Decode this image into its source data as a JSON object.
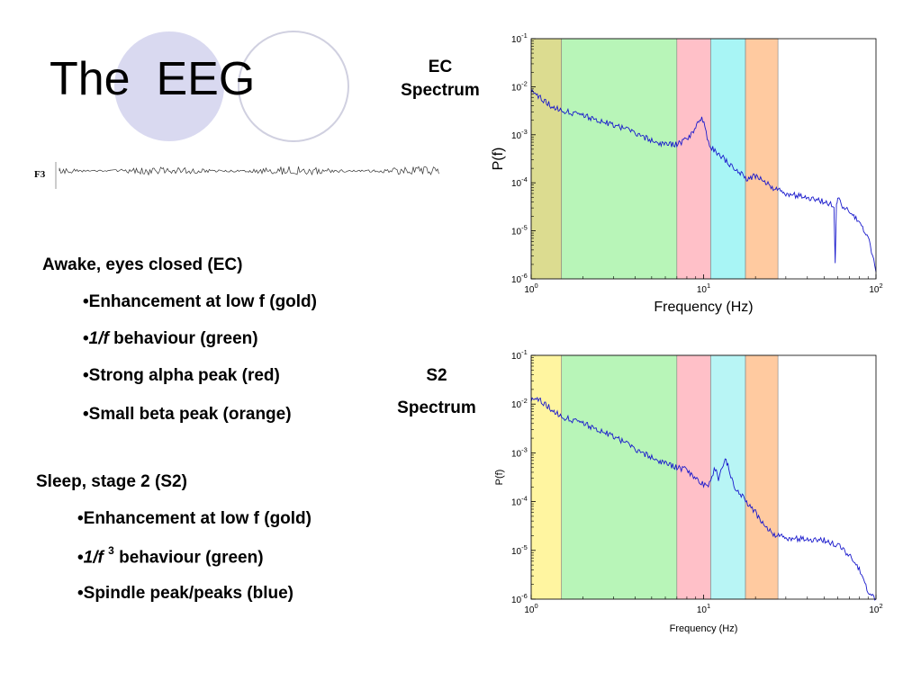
{
  "slide": {
    "title": "The  EEG",
    "eeg_channel": "F3",
    "ec_label_line1": "EC",
    "ec_label_line2": "Spectrum",
    "s2_label_line1": "S2",
    "s2_label_line2": "Spectrum",
    "ec_heading": "Awake, eyes closed (EC)",
    "ec_bullets": {
      "b1": "•Enhancement at low f (gold)",
      "b2_pre": "•",
      "b2_em": "1/f",
      "b2_post": " behaviour (green)",
      "b3": "•Strong alpha peak (red)",
      "b4": "•Small beta peak (orange)"
    },
    "s2_heading": "Sleep, stage 2 (S2)",
    "s2_bullets": {
      "b1": "•Enhancement at low f (gold)",
      "b2_pre": "•",
      "b2_em": "1/f",
      "b2_sup": "3",
      "b2_post": " behaviour (green)",
      "b3": "•Spindle peak/peaks (blue)"
    },
    "colors": {
      "circle_fill": "#d9d9f0",
      "circle_outline": "#d0d0e0",
      "trace": "#1a1acc"
    }
  },
  "chart_data": [
    {
      "type": "line",
      "xlabel": "Frequency (Hz)",
      "ylabel": "P(f)",
      "x_scale": "log",
      "y_scale": "log",
      "xlim": [
        1,
        100
      ],
      "ylim": [
        1e-06,
        0.1
      ],
      "x_ticks": [
        {
          "b": "10",
          "e": "0"
        },
        {
          "b": "10",
          "e": "1"
        },
        {
          "b": "10",
          "e": "2"
        }
      ],
      "y_ticks": [
        {
          "b": "10",
          "e": "-6"
        },
        {
          "b": "10",
          "e": "-5"
        },
        {
          "b": "10",
          "e": "-4"
        },
        {
          "b": "10",
          "e": "-3"
        },
        {
          "b": "10",
          "e": "-2"
        },
        {
          "b": "10",
          "e": "-1"
        }
      ],
      "bands": [
        {
          "from": 1,
          "to": 1.5,
          "color": "#dcdc90"
        },
        {
          "from": 1.5,
          "to": 7,
          "color": "#b8f5b8"
        },
        {
          "from": 7,
          "to": 11,
          "color": "#ffc0c8"
        },
        {
          "from": 11,
          "to": 17.5,
          "color": "#a8f5f5"
        },
        {
          "from": 17.5,
          "to": 27,
          "color": "#ffcaa0"
        }
      ],
      "series": [
        {
          "color": "#1a1acc",
          "points": [
            [
              1,
              0.008
            ],
            [
              1.1,
              0.0065
            ],
            [
              1.3,
              0.004
            ],
            [
              1.5,
              0.0032
            ],
            [
              2,
              0.0025
            ],
            [
              3,
              0.0016
            ],
            [
              4,
              0.0011
            ],
            [
              5,
              0.00075
            ],
            [
              6,
              0.00062
            ],
            [
              7,
              0.00063
            ],
            [
              8,
              0.0008
            ],
            [
              9,
              0.0014
            ],
            [
              9.5,
              0.0022
            ],
            [
              9.9,
              0.002
            ],
            [
              10.5,
              0.0009
            ],
            [
              11,
              0.00055
            ],
            [
              13,
              0.00033
            ],
            [
              15,
              0.0002
            ],
            [
              17,
              0.00014
            ],
            [
              18,
              0.00012
            ],
            [
              19,
              0.00013
            ],
            [
              20,
              0.00014
            ],
            [
              22,
              0.00011
            ],
            [
              25,
              8e-05
            ],
            [
              30,
              6e-05
            ],
            [
              40,
              5e-05
            ],
            [
              50,
              4e-05
            ],
            [
              57,
              3.5e-05
            ],
            [
              58,
              2e-06
            ],
            [
              59,
              3.2e-05
            ],
            [
              60,
              5e-05
            ],
            [
              63,
              3.5e-05
            ],
            [
              70,
              2.5e-05
            ],
            [
              80,
              1.5e-05
            ],
            [
              90,
              8e-06
            ],
            [
              100,
              1.4e-06
            ]
          ]
        }
      ]
    },
    {
      "type": "line",
      "xlabel": "Frequency (Hz)",
      "ylabel": "P(f)",
      "x_scale": "log",
      "y_scale": "log",
      "xlim": [
        1,
        100
      ],
      "ylim": [
        1e-06,
        0.1
      ],
      "x_ticks": [
        {
          "b": "10",
          "e": "0"
        },
        {
          "b": "10",
          "e": "1"
        },
        {
          "b": "10",
          "e": "2"
        }
      ],
      "y_ticks": [
        {
          "b": "10",
          "e": "-6"
        },
        {
          "b": "10",
          "e": "-5"
        },
        {
          "b": "10",
          "e": "-4"
        },
        {
          "b": "10",
          "e": "-3"
        },
        {
          "b": "10",
          "e": "-2"
        },
        {
          "b": "10",
          "e": "-1"
        }
      ],
      "bands": [
        {
          "from": 1,
          "to": 1.5,
          "color": "#fff5a0"
        },
        {
          "from": 1.5,
          "to": 7,
          "color": "#b8f5b8"
        },
        {
          "from": 7,
          "to": 11,
          "color": "#ffc0c8"
        },
        {
          "from": 11,
          "to": 17.5,
          "color": "#b8f5f5"
        },
        {
          "from": 17.5,
          "to": 27,
          "color": "#ffcaa0"
        }
      ],
      "series": [
        {
          "color": "#1a1acc",
          "points": [
            [
              1,
              0.012
            ],
            [
              1.1,
              0.013
            ],
            [
              1.3,
              0.008
            ],
            [
              1.5,
              0.0055
            ],
            [
              2,
              0.004
            ],
            [
              3,
              0.0022
            ],
            [
              4,
              0.0012
            ],
            [
              5,
              0.0008
            ],
            [
              6,
              0.0006
            ],
            [
              7,
              0.0005
            ],
            [
              8,
              0.00045
            ],
            [
              9,
              0.0003
            ],
            [
              10,
              0.00022
            ],
            [
              10.5,
              0.0002
            ],
            [
              11,
              0.0003
            ],
            [
              11.7,
              0.00048
            ],
            [
              12.2,
              0.0003
            ],
            [
              13,
              0.0006
            ],
            [
              13.5,
              0.0007
            ],
            [
              14,
              0.0005
            ],
            [
              15,
              0.0002
            ],
            [
              17,
              0.00012
            ],
            [
              20,
              6e-05
            ],
            [
              22,
              3.5e-05
            ],
            [
              25,
              2.2e-05
            ],
            [
              30,
              1.8e-05
            ],
            [
              40,
              1.7e-05
            ],
            [
              50,
              1.6e-05
            ],
            [
              60,
              1.3e-05
            ],
            [
              70,
              8e-06
            ],
            [
              80,
              4e-06
            ],
            [
              90,
              1.5e-06
            ],
            [
              100,
              1e-06
            ]
          ]
        }
      ]
    }
  ]
}
